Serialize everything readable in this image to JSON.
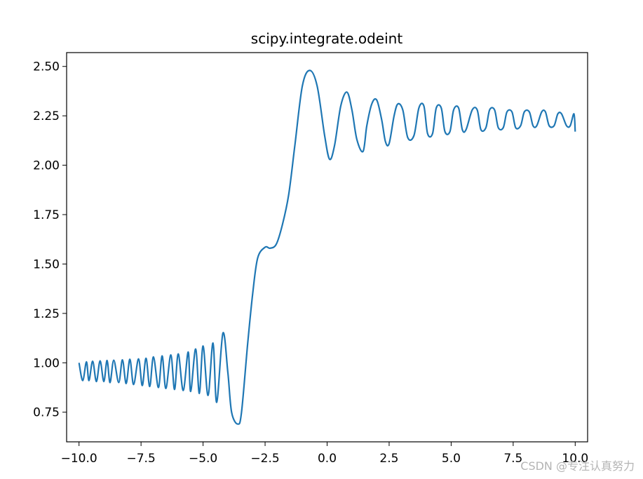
{
  "watermark": "CSDN @专注认真努力",
  "colors": {
    "line": "#1f77b4",
    "axes": "#000000",
    "background": "#ffffff",
    "watermark": "#b4b4b4"
  },
  "chart_data": {
    "type": "line",
    "title": "scipy.integrate.odeint",
    "xlabel": "",
    "ylabel": "",
    "xlim": [
      -10.5,
      10.5
    ],
    "ylim": [
      0.6,
      2.57
    ],
    "grid": false,
    "legend": "none",
    "x_ticks": [
      -10.0,
      -7.5,
      -5.0,
      -2.5,
      0.0,
      2.5,
      5.0,
      7.5,
      10.0
    ],
    "x_tick_labels": [
      "−10.0",
      "−7.5",
      "−5.0",
      "−2.5",
      "0.0",
      "2.5",
      "5.0",
      "7.5",
      "10.0"
    ],
    "y_ticks": [
      0.75,
      1.0,
      1.25,
      1.5,
      1.75,
      2.0,
      2.25,
      2.5
    ],
    "y_tick_labels": [
      "0.75",
      "1.00",
      "1.25",
      "1.50",
      "1.75",
      "2.00",
      "2.25",
      "2.50"
    ],
    "series": [
      {
        "x": [
          -10.0,
          -9.85,
          -9.7,
          -9.6,
          -9.45,
          -9.3,
          -9.15,
          -9.0,
          -8.87,
          -8.75,
          -8.6,
          -8.4,
          -8.25,
          -8.1,
          -7.95,
          -7.8,
          -7.6,
          -7.45,
          -7.3,
          -7.15,
          -7.0,
          -6.8,
          -6.65,
          -6.5,
          -6.3,
          -6.15,
          -6.0,
          -5.8,
          -5.6,
          -5.5,
          -5.3,
          -5.15,
          -5.0,
          -4.8,
          -4.6,
          -4.45,
          -4.2,
          -4.0,
          -3.85,
          -3.6,
          -3.45,
          -3.2,
          -3.0,
          -2.8,
          -2.5,
          -2.3,
          -2.05,
          -1.8,
          -1.55,
          -1.3,
          -1.0,
          -0.7,
          -0.4,
          -0.1,
          0.1,
          0.3,
          0.55,
          0.8,
          1.0,
          1.2,
          1.45,
          1.6,
          1.8,
          2.0,
          2.2,
          2.35,
          2.5,
          2.7,
          2.85,
          3.05,
          3.25,
          3.5,
          3.7,
          3.9,
          4.05,
          4.25,
          4.4,
          4.6,
          4.75,
          4.95,
          5.1,
          5.3,
          5.45,
          5.6,
          5.85,
          6.05,
          6.2,
          6.4,
          6.55,
          6.75,
          6.9,
          7.1,
          7.25,
          7.45,
          7.6,
          7.8,
          7.95,
          8.15,
          8.3,
          8.45,
          8.65,
          8.8,
          8.95,
          9.15,
          9.3,
          9.45,
          9.65,
          9.8,
          9.95,
          10.0
        ],
        "y": [
          1.0,
          0.91,
          1.005,
          0.91,
          1.008,
          0.905,
          1.01,
          0.905,
          1.012,
          0.9,
          1.013,
          0.9,
          1.015,
          0.895,
          1.018,
          0.89,
          1.02,
          0.885,
          1.023,
          0.88,
          1.03,
          0.875,
          1.035,
          0.87,
          1.04,
          0.865,
          1.045,
          0.86,
          1.055,
          0.855,
          1.07,
          0.845,
          1.085,
          0.835,
          1.1,
          0.8,
          1.15,
          0.95,
          0.75,
          0.69,
          0.75,
          1.1,
          1.35,
          1.53,
          1.585,
          1.58,
          1.6,
          1.7,
          1.85,
          2.1,
          2.4,
          2.48,
          2.4,
          2.15,
          2.03,
          2.1,
          2.3,
          2.37,
          2.28,
          2.13,
          2.07,
          2.2,
          2.31,
          2.33,
          2.23,
          2.12,
          2.11,
          2.25,
          2.31,
          2.28,
          2.14,
          2.15,
          2.29,
          2.3,
          2.16,
          2.16,
          2.29,
          2.29,
          2.17,
          2.17,
          2.28,
          2.29,
          2.18,
          2.18,
          2.28,
          2.28,
          2.18,
          2.19,
          2.28,
          2.28,
          2.19,
          2.19,
          2.27,
          2.27,
          2.19,
          2.2,
          2.27,
          2.27,
          2.2,
          2.2,
          2.27,
          2.27,
          2.2,
          2.2,
          2.26,
          2.26,
          2.2,
          2.2,
          2.26,
          2.17
        ]
      }
    ]
  }
}
